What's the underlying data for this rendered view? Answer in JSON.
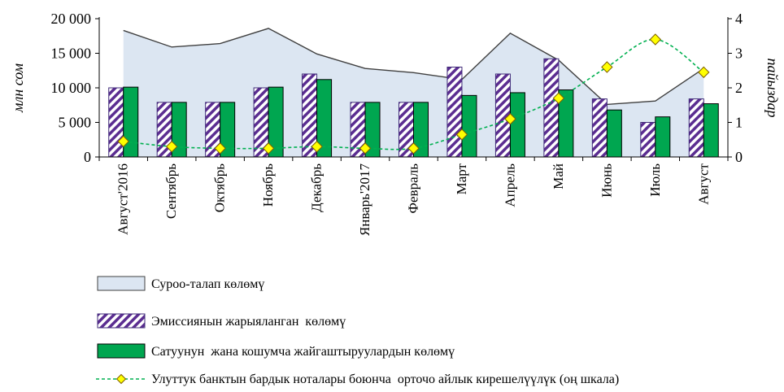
{
  "chart_data": {
    "type": "bar",
    "categories": [
      "Август'2016",
      "Сентябрь",
      "Октябрь",
      "Ноябрь",
      "Декабрь",
      "Январь'2017",
      "Февраль",
      "Март",
      "Апрель",
      "Май",
      "Июнь",
      "Июль",
      "Август"
    ],
    "ylabel": "млн сом",
    "ylabel_right": "пайыздар",
    "ylim": [
      0,
      20000
    ],
    "ylim_right": [
      0,
      4
    ],
    "y_ticks": [
      "0",
      "5 000",
      "10 000",
      "15 000",
      "20 000"
    ],
    "y_ticks_right": [
      "0",
      "1",
      "2",
      "3",
      "4"
    ],
    "series": [
      {
        "name": "Суроо-талап көлөмү",
        "type": "area",
        "axis": "left",
        "color": "#dce6f2",
        "values": [
          18300,
          15900,
          16400,
          18600,
          14900,
          12800,
          12200,
          11200,
          17900,
          14000,
          7600,
          8100,
          12800
        ]
      },
      {
        "name": "Эмиссиянын жарыяланган  көлөмү",
        "type": "bar",
        "axis": "left",
        "color": "#5b2d91",
        "values": [
          10000,
          7900,
          7900,
          10000,
          12000,
          7900,
          7900,
          13000,
          12000,
          14200,
          8400,
          5000,
          8400
        ]
      },
      {
        "name": "Сатуунун  жана кошумча жайгаштыруулардын көлөмү",
        "type": "bar",
        "axis": "left",
        "color": "#00a650",
        "values": [
          10100,
          7900,
          7900,
          10100,
          11200,
          7900,
          7900,
          8900,
          9300,
          9700,
          6800,
          5800,
          7700
        ]
      },
      {
        "name": "Улуттук банктын бардык ноталары боюнча  орточо айлык кирешелүүлүк (оң шкала)",
        "type": "line",
        "axis": "right",
        "color": "#ffff00",
        "values": [
          0.45,
          0.3,
          0.25,
          0.25,
          0.3,
          0.25,
          0.25,
          0.65,
          1.1,
          1.7,
          2.6,
          3.4,
          2.45
        ]
      }
    ],
    "legend_position": "bottom",
    "grid": false
  }
}
